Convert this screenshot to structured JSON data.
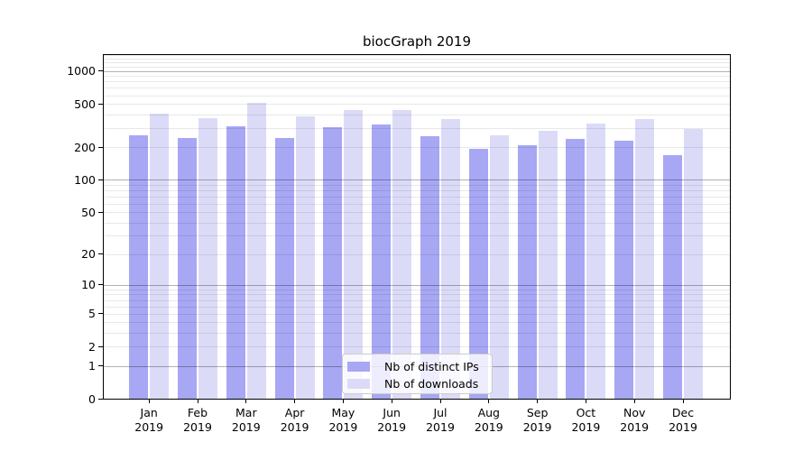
{
  "title": "biocGraph 2019",
  "chart_data": {
    "type": "bar",
    "title": "biocGraph 2019",
    "categories": [
      "Jan",
      "Feb",
      "Mar",
      "Apr",
      "May",
      "Jun",
      "Jul",
      "Aug",
      "Sep",
      "Oct",
      "Nov",
      "Dec"
    ],
    "category_year": "2019",
    "series": [
      {
        "name": "Nb of distinct IPs",
        "color": "#a7a7f4",
        "values": [
          258,
          245,
          310,
          242,
          308,
          325,
          250,
          193,
          207,
          238,
          228,
          168
        ]
      },
      {
        "name": "Nb of downloads",
        "color": "#dbdbf8",
        "values": [
          410,
          370,
          510,
          385,
          440,
          437,
          362,
          257,
          285,
          330,
          362,
          295
        ]
      }
    ],
    "y_scale": "log10(1+x)",
    "y_ticks": [
      0,
      1,
      2,
      5,
      10,
      20,
      50,
      100,
      200,
      500,
      1000
    ],
    "y_major_gridlines": [
      1,
      10,
      100,
      1000
    ],
    "y_minor_gridlines": [
      2,
      3,
      4,
      5,
      6,
      7,
      8,
      9,
      20,
      30,
      40,
      50,
      60,
      70,
      80,
      90,
      200,
      300,
      400,
      500,
      600,
      700,
      800,
      900,
      1100,
      1200,
      1300,
      1400
    ],
    "ylim_max": 1450,
    "grid": true,
    "legend_position": "lower center"
  },
  "legend": {
    "entries": [
      {
        "label": "Nb of distinct IPs",
        "color": "#a7a7f4"
      },
      {
        "label": "Nb of downloads",
        "color": "#dbdbf8"
      }
    ]
  },
  "colors": {
    "distinct_ips": "#a7a7f4",
    "downloads": "#dbdbf8",
    "spine": "#000000",
    "grid_major": "#b3b3b3",
    "grid_minor": "#e8e8e8",
    "background": "#ffffff"
  }
}
